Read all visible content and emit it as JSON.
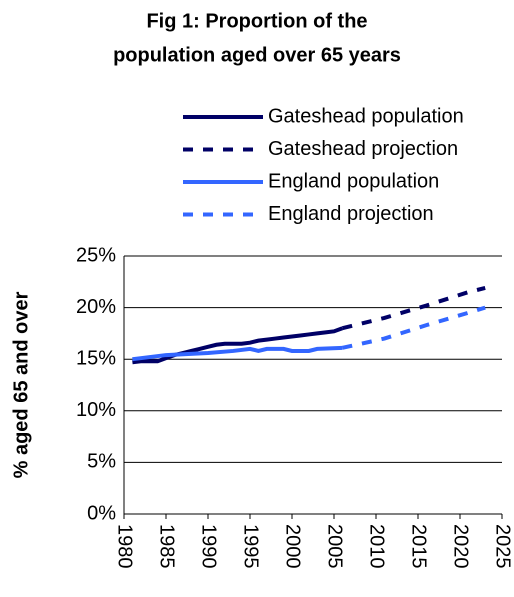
{
  "chart_data": {
    "type": "line",
    "title": [
      "Fig 1: Proportion of the",
      "population aged over 65 years"
    ],
    "ylabel": "% aged 65 and over",
    "xlim": [
      1980,
      2025
    ],
    "xticks": [
      1980,
      1985,
      1990,
      1995,
      2000,
      2005,
      2010,
      2015,
      2020,
      2025
    ],
    "ylim": [
      0,
      25
    ],
    "yticks": [
      {
        "value": 0,
        "label": "0%"
      },
      {
        "value": 5,
        "label": "5%"
      },
      {
        "value": 10,
        "label": "10%"
      },
      {
        "value": 15,
        "label": "15%"
      },
      {
        "value": 20,
        "label": "20%"
      },
      {
        "value": 25,
        "label": "25%"
      }
    ],
    "grid": true,
    "legend": "top",
    "series": [
      {
        "name": "Gateshead population",
        "color": "#000066",
        "dashed": false,
        "x": [
          1981,
          1982,
          1983,
          1984,
          1985,
          1986,
          1987,
          1988,
          1989,
          1990,
          1991,
          1992,
          1993,
          1994,
          1995,
          1996,
          1997,
          1998,
          1999,
          2000,
          2001,
          2002,
          2003,
          2004,
          2005,
          2006
        ],
        "values": [
          14.7,
          14.8,
          14.8,
          14.8,
          15.1,
          15.4,
          15.6,
          15.8,
          16.0,
          16.2,
          16.4,
          16.5,
          16.5,
          16.5,
          16.6,
          16.8,
          16.9,
          17.0,
          17.1,
          17.2,
          17.3,
          17.4,
          17.5,
          17.6,
          17.7,
          18.0
        ]
      },
      {
        "name": "Gateshead projection",
        "color": "#000066",
        "dashed": true,
        "x": [
          2006,
          2011,
          2016,
          2021,
          2023
        ],
        "values": [
          18.0,
          19.0,
          20.2,
          21.5,
          21.9
        ]
      },
      {
        "name": "England population",
        "color": "#3366ff",
        "dashed": false,
        "x": [
          1981,
          1985,
          1990,
          1993,
          1995,
          1996,
          1997,
          1999,
          2000,
          2002,
          2003,
          2006
        ],
        "values": [
          15.0,
          15.4,
          15.6,
          15.8,
          16.0,
          15.8,
          16.0,
          16.0,
          15.8,
          15.8,
          16.0,
          16.1
        ]
      },
      {
        "name": "England projection",
        "color": "#3366ff",
        "dashed": true,
        "x": [
          2006,
          2011,
          2016,
          2021,
          2023
        ],
        "values": [
          16.1,
          17.0,
          18.3,
          19.5,
          20.0
        ]
      }
    ]
  }
}
